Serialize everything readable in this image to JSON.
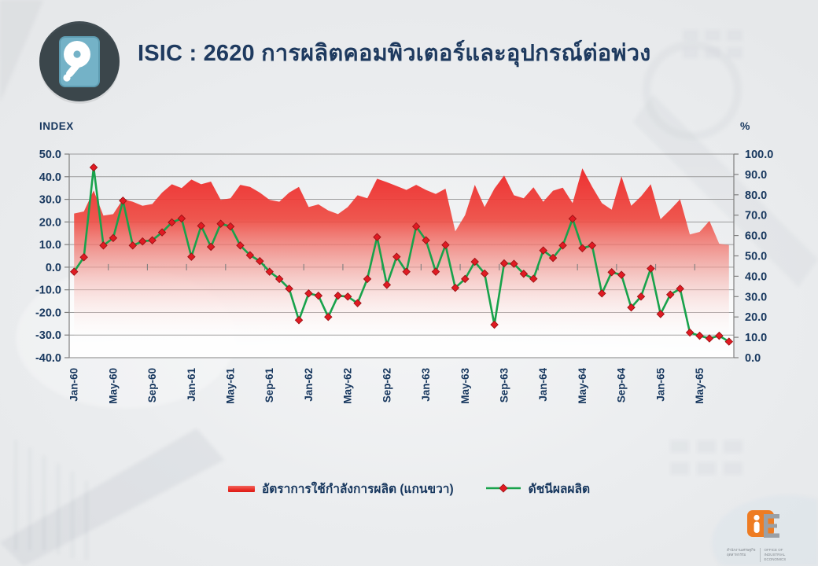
{
  "header": {
    "title": "ISIC : 2620 การผลิตคอมพิวเตอร์และอุปกรณ์ต่อพ่วง",
    "icon": "hard-disk-icon"
  },
  "chart_data": {
    "type": "combo-area-line",
    "title": "",
    "left_axis": {
      "label": "INDEX",
      "min": -40,
      "max": 50,
      "step": 10
    },
    "right_axis": {
      "label": "%",
      "min": 0,
      "max": 100,
      "step": 10
    },
    "grid": true,
    "legend_position": "bottom",
    "x_tick_labels": [
      "Jan-60",
      "May-60",
      "Sep-60",
      "Jan-61",
      "May-61",
      "Sep-61",
      "Jan-62",
      "May-62",
      "Sep-62",
      "Jan-63",
      "May-63",
      "Sep-63",
      "Jan-64",
      "May-64",
      "Sep-64",
      "Jan-65",
      "May-65"
    ],
    "categories": [
      "Jan-60",
      "Feb-60",
      "Mar-60",
      "Apr-60",
      "May-60",
      "Jun-60",
      "Jul-60",
      "Aug-60",
      "Sep-60",
      "Oct-60",
      "Nov-60",
      "Dec-60",
      "Jan-61",
      "Feb-61",
      "Mar-61",
      "Apr-61",
      "May-61",
      "Jun-61",
      "Jul-61",
      "Aug-61",
      "Sep-61",
      "Oct-61",
      "Nov-61",
      "Dec-61",
      "Jan-62",
      "Feb-62",
      "Mar-62",
      "Apr-62",
      "May-62",
      "Jun-62",
      "Jul-62",
      "Aug-62",
      "Sep-62",
      "Oct-62",
      "Nov-62",
      "Dec-62",
      "Jan-63",
      "Feb-63",
      "Mar-63",
      "Apr-63",
      "May-63",
      "Jun-63",
      "Jul-63",
      "Aug-63",
      "Sep-63",
      "Oct-63",
      "Nov-63",
      "Dec-63",
      "Jan-64",
      "Feb-64",
      "Mar-64",
      "Apr-64",
      "May-64",
      "Jun-64",
      "Jul-64",
      "Aug-64",
      "Sep-64",
      "Oct-64",
      "Nov-64",
      "Dec-64",
      "Jan-65",
      "Feb-65",
      "Mar-65",
      "Apr-65",
      "May-65",
      "Jun-65",
      "Jul-65",
      "Aug-65"
    ],
    "series": [
      {
        "name": "อัตราการใช้กำลังการผลิต (แกนขวา)",
        "type": "area",
        "axis": "right",
        "color": "#ed2024",
        "values": [
          70.8,
          71.8,
          82.1,
          69.8,
          70.5,
          77.9,
          76.6,
          74.6,
          75.5,
          81.1,
          85.2,
          83.3,
          87.5,
          85.2,
          86.5,
          77.5,
          78.3,
          84.9,
          83.9,
          81.1,
          77.5,
          76.6,
          81.1,
          83.9,
          74.0,
          75.3,
          72.3,
          70.5,
          74.0,
          79.8,
          78.3,
          87.9,
          86.2,
          84.3,
          82.4,
          84.9,
          82.4,
          80.4,
          83.0,
          62.0,
          70.0,
          84.9,
          74.0,
          83.0,
          89.5,
          79.8,
          78.3,
          83.7,
          76.6,
          82.0,
          83.5,
          75.9,
          93.0,
          84.0,
          75.9,
          72.7,
          89.1,
          74.6,
          79.2,
          85.2,
          68.0,
          72.7,
          77.8,
          60.5,
          61.8,
          67.2,
          56.0,
          55.3
        ]
      },
      {
        "name": "ดัชนีผลผลิต",
        "type": "line",
        "axis": "left",
        "color": "#18a24b",
        "marker": "diamond",
        "marker_color": "#e01b23",
        "values": [
          -2.0,
          4.4,
          44.1,
          9.6,
          12.9,
          29.4,
          9.6,
          11.4,
          11.9,
          15.4,
          19.8,
          21.5,
          4.6,
          18.3,
          9.0,
          19.2,
          18.0,
          9.6,
          5.3,
          2.7,
          -2.0,
          -5.2,
          -9.5,
          -23.4,
          -11.6,
          -12.6,
          -22.0,
          -12.6,
          -13.0,
          -15.9,
          -5.2,
          13.3,
          -7.8,
          4.6,
          -2.0,
          18.0,
          11.9,
          -2.0,
          9.8,
          -9.1,
          -5.2,
          2.4,
          -2.8,
          -25.4,
          1.7,
          1.5,
          -2.9,
          -5.1,
          7.4,
          4.1,
          9.6,
          21.4,
          8.4,
          9.6,
          -11.6,
          -2.2,
          -3.4,
          -17.8,
          -13.0,
          -0.6,
          -20.7,
          -12.1,
          -9.5,
          -28.9,
          -30.3,
          -31.5,
          -30.3,
          -32.9
        ]
      }
    ]
  },
  "logo": {
    "thai": "สำนักงานเศรษฐกิจอุตสาหกรรม",
    "english": "OFFICE OF INDUSTRIAL ECONOMICS"
  }
}
